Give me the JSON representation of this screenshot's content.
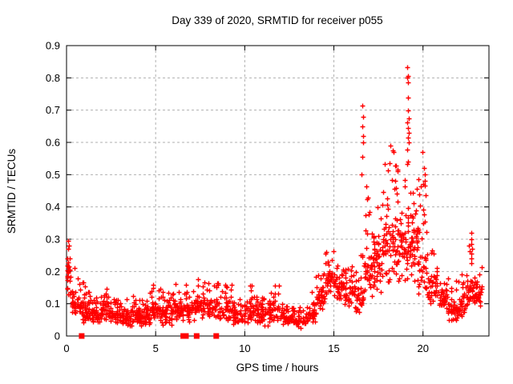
{
  "window": {
    "background": "#ffffff"
  },
  "chart_data": {
    "type": "scatter",
    "title": "Day 339 of 2020, SRMTID for receiver p055",
    "xlabel": "GPS time / hours",
    "ylabel": "SRMTID / TECUs",
    "xlim": [
      0,
      23.7
    ],
    "ylim": [
      0,
      0.9
    ],
    "xticks": [
      0,
      5,
      10,
      15,
      20
    ],
    "yticks": [
      0,
      0.1,
      0.2,
      0.3,
      0.4,
      0.5,
      0.6,
      0.7,
      0.8,
      0.9
    ],
    "grid": "dashed",
    "grid_color": "#b0b0b0",
    "border_color": "#000000",
    "marker": "plus",
    "marker_color": "#ff0000",
    "legend": "none",
    "seed": 1339,
    "tail_fraction": 0.14,
    "envelope_bins_comment": "each bin: [hour_start, hour_end, n_points, core_min, core_max, tail_max] of SRMTID values in TECUs read from the plot",
    "envelope_bins": [
      [
        0.0,
        0.3,
        22,
        0.08,
        0.28,
        0.3
      ],
      [
        0.3,
        0.7,
        30,
        0.05,
        0.16,
        0.22
      ],
      [
        0.7,
        1.2,
        40,
        0.03,
        0.12,
        0.17
      ],
      [
        1.2,
        1.8,
        46,
        0.03,
        0.1,
        0.14
      ],
      [
        1.8,
        2.4,
        46,
        0.04,
        0.12,
        0.15
      ],
      [
        2.4,
        3.0,
        46,
        0.03,
        0.1,
        0.12
      ],
      [
        3.0,
        3.6,
        46,
        0.02,
        0.09,
        0.12
      ],
      [
        3.6,
        4.2,
        46,
        0.03,
        0.1,
        0.13
      ],
      [
        4.2,
        4.8,
        46,
        0.03,
        0.11,
        0.15
      ],
      [
        4.8,
        5.4,
        46,
        0.04,
        0.12,
        0.16
      ],
      [
        5.4,
        6.0,
        46,
        0.03,
        0.11,
        0.14
      ],
      [
        6.0,
        6.6,
        42,
        0.04,
        0.12,
        0.17
      ],
      [
        6.6,
        7.2,
        42,
        0.04,
        0.13,
        0.16
      ],
      [
        7.2,
        7.9,
        46,
        0.05,
        0.14,
        0.19
      ],
      [
        7.9,
        8.6,
        46,
        0.04,
        0.13,
        0.17
      ],
      [
        8.6,
        9.3,
        46,
        0.04,
        0.12,
        0.17
      ],
      [
        9.3,
        10.0,
        46,
        0.03,
        0.09,
        0.12
      ],
      [
        10.0,
        10.7,
        46,
        0.04,
        0.12,
        0.17
      ],
      [
        10.7,
        11.3,
        42,
        0.03,
        0.1,
        0.13
      ],
      [
        11.3,
        12.0,
        46,
        0.04,
        0.12,
        0.16
      ],
      [
        12.0,
        12.7,
        46,
        0.03,
        0.08,
        0.1
      ],
      [
        12.7,
        13.4,
        46,
        0.02,
        0.07,
        0.09
      ],
      [
        13.4,
        14.0,
        40,
        0.03,
        0.09,
        0.14
      ],
      [
        14.0,
        14.5,
        36,
        0.06,
        0.18,
        0.25
      ],
      [
        14.5,
        15.0,
        36,
        0.1,
        0.22,
        0.27
      ],
      [
        15.0,
        15.6,
        42,
        0.1,
        0.2,
        0.24
      ],
      [
        15.6,
        16.2,
        42,
        0.08,
        0.18,
        0.22
      ],
      [
        16.2,
        16.7,
        36,
        0.06,
        0.17,
        0.26
      ],
      [
        16.7,
        17.2,
        40,
        0.1,
        0.32,
        0.55
      ],
      [
        17.2,
        17.7,
        44,
        0.12,
        0.36,
        0.5
      ],
      [
        17.7,
        18.2,
        44,
        0.14,
        0.4,
        0.55
      ],
      [
        18.2,
        18.7,
        44,
        0.15,
        0.44,
        0.58
      ],
      [
        18.7,
        19.2,
        44,
        0.15,
        0.46,
        0.62
      ],
      [
        19.2,
        19.7,
        44,
        0.15,
        0.44,
        0.6
      ],
      [
        19.7,
        20.2,
        40,
        0.1,
        0.32,
        0.5
      ],
      [
        20.2,
        20.8,
        42,
        0.08,
        0.22,
        0.3
      ],
      [
        20.8,
        21.4,
        42,
        0.06,
        0.16,
        0.2
      ],
      [
        21.4,
        22.0,
        42,
        0.04,
        0.13,
        0.18
      ],
      [
        22.0,
        22.5,
        36,
        0.05,
        0.15,
        0.2
      ],
      [
        22.5,
        22.9,
        30,
        0.08,
        0.2,
        0.3
      ],
      [
        22.9,
        23.3,
        30,
        0.08,
        0.18,
        0.22
      ]
    ],
    "outlier_points_comment": "distinct high points read individually: [hour, TECUs]",
    "outlier_points": [
      [
        0.07,
        0.295
      ],
      [
        0.1,
        0.27
      ],
      [
        16.6,
        0.715
      ],
      [
        16.62,
        0.68
      ],
      [
        16.58,
        0.65
      ],
      [
        16.63,
        0.62
      ],
      [
        16.66,
        0.6
      ],
      [
        16.61,
        0.555
      ],
      [
        16.57,
        0.5
      ],
      [
        18.15,
        0.59
      ],
      [
        18.3,
        0.575
      ],
      [
        18.35,
        0.57
      ],
      [
        19.12,
        0.832
      ],
      [
        19.15,
        0.807
      ],
      [
        19.13,
        0.8
      ],
      [
        19.16,
        0.786
      ],
      [
        19.14,
        0.74
      ],
      [
        19.18,
        0.7
      ],
      [
        19.2,
        0.675
      ],
      [
        19.12,
        0.662
      ],
      [
        19.17,
        0.645
      ],
      [
        19.22,
        0.63
      ],
      [
        19.15,
        0.615
      ],
      [
        19.19,
        0.6
      ],
      [
        19.13,
        0.578
      ],
      [
        19.95,
        0.57
      ],
      [
        20.05,
        0.52
      ],
      [
        20.08,
        0.5
      ],
      [
        20.1,
        0.48
      ],
      [
        20.12,
        0.465
      ],
      [
        22.7,
        0.32
      ],
      [
        22.72,
        0.3
      ],
      [
        22.7,
        0.285
      ],
      [
        22.74,
        0.27
      ],
      [
        22.71,
        0.255
      ],
      [
        22.73,
        0.24
      ],
      [
        22.72,
        0.225
      ]
    ],
    "zero_value_points_comment": "points plotted at exactly 0 TECUs (appear as solid squares on the x-axis), hours:",
    "zero_value_points": [
      0.85,
      6.55,
      6.7,
      7.3,
      8.4
    ]
  }
}
